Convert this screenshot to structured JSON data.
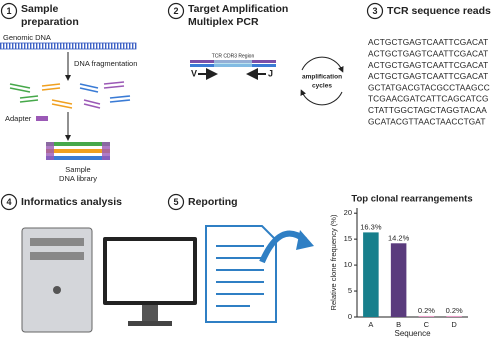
{
  "steps": [
    {
      "number": "1",
      "title": [
        "Sample",
        "preparation"
      ]
    },
    {
      "number": "2",
      "title": [
        "Target Amplification",
        "Multiplex PCR"
      ]
    },
    {
      "number": "3",
      "title": [
        "TCR sequence reads"
      ]
    },
    {
      "number": "4",
      "title": [
        "Informatics analysis"
      ]
    },
    {
      "number": "5",
      "title": [
        "Reporting"
      ]
    }
  ],
  "labels": {
    "genomic_dna": "Genomic DNA",
    "fragmentation": "DNA fragmentation",
    "adapter": "Adapter",
    "library": [
      "Sample",
      "DNA library"
    ],
    "region": "TCR CDR3 Region",
    "v": "V",
    "j": "J",
    "cycles": [
      "amplification",
      "cycles"
    ]
  },
  "sequence_reads": [
    "ACTGCTGAGTCAATTCGACAT",
    "ACTGCTGAGTCAATTCGACAT",
    "ACTGCTGAGTCAATTCGACAT",
    "ACTGCTGAGTCAATTCGACAT",
    "GCTATGACGTACGCCTAAGCC",
    "TCGAACGATCATTCAGCATCG",
    "CTATTGGCTAGCTAGGTACAA",
    "GCATACGTTAACTAACCTGAT"
  ],
  "chart_data": {
    "type": "bar",
    "title": "Top clonal rearrangements",
    "x_label": "Sequence",
    "y_label": "Relative clone frequency (%)",
    "categories": [
      "A",
      "B",
      "C",
      "D"
    ],
    "values": [
      16.3,
      14.2,
      0.2,
      0.2
    ],
    "value_labels": [
      "16.3%",
      "14.2%",
      "0.2%",
      "0.2%"
    ],
    "colors": [
      "#177f8c",
      "#5a3b7d",
      "#e79ac6",
      "#e79ac6"
    ],
    "ylim": [
      0,
      21
    ],
    "yticks": [
      0,
      5,
      10,
      15,
      20
    ]
  }
}
